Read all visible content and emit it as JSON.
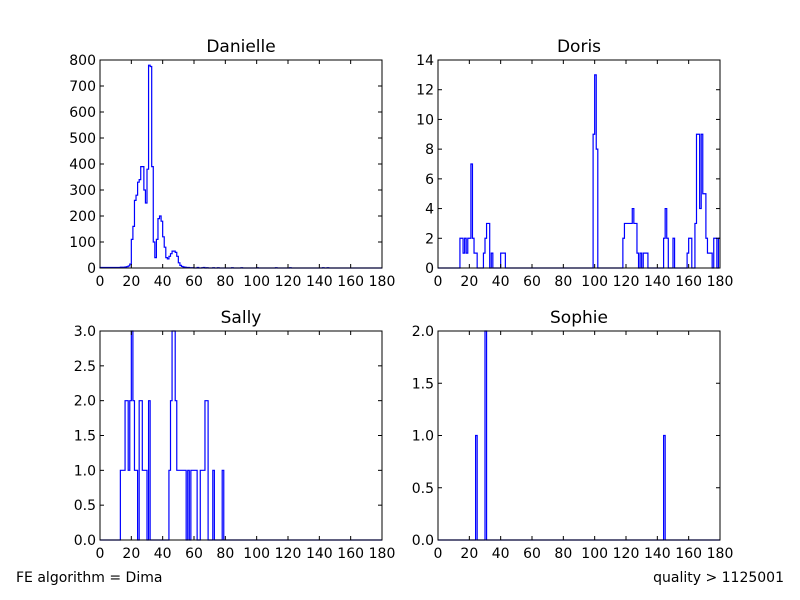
{
  "footer": {
    "left": "FE algorithm = Dima",
    "right": "quality > 1125001"
  },
  "colors": {
    "line": "#0000ff",
    "axes": "#000000",
    "background": "#ffffff"
  },
  "chart_data": [
    {
      "type": "histogram-step",
      "title": "Danielle",
      "xlim": [
        0,
        180
      ],
      "ylim": [
        0,
        800
      ],
      "xticks": [
        0,
        20,
        40,
        60,
        80,
        100,
        120,
        140,
        160,
        180
      ],
      "yticks": [
        0,
        100,
        200,
        300,
        400,
        500,
        600,
        700,
        800
      ],
      "bin_width": 1,
      "bins": [
        [
          0,
          2
        ],
        [
          1,
          2
        ],
        [
          2,
          2
        ],
        [
          3,
          2
        ],
        [
          4,
          2
        ],
        [
          5,
          2
        ],
        [
          6,
          2
        ],
        [
          7,
          2
        ],
        [
          8,
          2
        ],
        [
          9,
          2
        ],
        [
          10,
          2
        ],
        [
          11,
          2
        ],
        [
          12,
          2
        ],
        [
          13,
          3
        ],
        [
          14,
          3
        ],
        [
          15,
          3
        ],
        [
          16,
          4
        ],
        [
          17,
          5
        ],
        [
          18,
          8
        ],
        [
          19,
          15
        ],
        [
          20,
          110
        ],
        [
          21,
          160
        ],
        [
          22,
          260
        ],
        [
          23,
          280
        ],
        [
          24,
          330
        ],
        [
          25,
          340
        ],
        [
          26,
          390
        ],
        [
          27,
          390
        ],
        [
          28,
          300
        ],
        [
          29,
          250
        ],
        [
          30,
          380
        ],
        [
          31,
          780
        ],
        [
          32,
          775
        ],
        [
          33,
          390
        ],
        [
          34,
          100
        ],
        [
          35,
          40
        ],
        [
          36,
          110
        ],
        [
          37,
          190
        ],
        [
          38,
          200
        ],
        [
          39,
          180
        ],
        [
          40,
          120
        ],
        [
          41,
          80
        ],
        [
          42,
          40
        ],
        [
          43,
          35
        ],
        [
          44,
          45
        ],
        [
          45,
          55
        ],
        [
          46,
          65
        ],
        [
          47,
          65
        ],
        [
          48,
          60
        ],
        [
          49,
          45
        ],
        [
          50,
          20
        ],
        [
          51,
          10
        ],
        [
          52,
          6
        ],
        [
          53,
          4
        ],
        [
          54,
          3
        ],
        [
          55,
          2
        ],
        [
          56,
          2
        ],
        [
          57,
          1
        ],
        [
          58,
          1
        ],
        [
          59,
          1
        ],
        [
          62,
          2
        ],
        [
          65,
          1
        ],
        [
          66,
          2
        ],
        [
          68,
          1
        ],
        [
          72,
          1
        ],
        [
          75,
          1
        ],
        [
          84,
          1
        ],
        [
          90,
          1
        ],
        [
          100,
          1
        ],
        [
          112,
          1
        ],
        [
          121,
          1
        ],
        [
          142,
          1
        ],
        [
          145,
          1
        ]
      ]
    },
    {
      "type": "histogram-step",
      "title": "Doris",
      "xlim": [
        0,
        180
      ],
      "ylim": [
        0,
        14
      ],
      "xticks": [
        0,
        20,
        40,
        60,
        80,
        100,
        120,
        140,
        160,
        180
      ],
      "yticks": [
        0,
        2,
        4,
        6,
        8,
        10,
        12,
        14
      ],
      "bin_width": 1,
      "bins": [
        [
          14,
          2
        ],
        [
          15,
          2
        ],
        [
          16,
          1
        ],
        [
          17,
          2
        ],
        [
          18,
          1
        ],
        [
          19,
          2
        ],
        [
          20,
          2
        ],
        [
          21,
          7
        ],
        [
          22,
          2
        ],
        [
          23,
          1
        ],
        [
          24,
          1
        ],
        [
          29,
          1
        ],
        [
          30,
          2
        ],
        [
          31,
          3
        ],
        [
          32,
          3
        ],
        [
          34,
          1
        ],
        [
          40,
          1
        ],
        [
          41,
          1
        ],
        [
          42,
          1
        ],
        [
          99,
          9
        ],
        [
          100,
          13
        ],
        [
          101,
          8
        ],
        [
          118,
          2
        ],
        [
          119,
          3
        ],
        [
          120,
          3
        ],
        [
          121,
          3
        ],
        [
          122,
          3
        ],
        [
          123,
          3
        ],
        [
          124,
          4
        ],
        [
          125,
          3
        ],
        [
          126,
          3
        ],
        [
          127,
          1
        ],
        [
          129,
          1
        ],
        [
          131,
          1
        ],
        [
          132,
          1
        ],
        [
          133,
          1
        ],
        [
          144,
          2
        ],
        [
          145,
          4
        ],
        [
          146,
          2
        ],
        [
          150,
          2
        ],
        [
          159,
          1
        ],
        [
          160,
          2
        ],
        [
          161,
          2
        ],
        [
          164,
          3
        ],
        [
          165,
          9
        ],
        [
          166,
          9
        ],
        [
          167,
          4
        ],
        [
          168,
          9
        ],
        [
          169,
          5
        ],
        [
          170,
          5
        ],
        [
          171,
          2
        ],
        [
          172,
          1
        ],
        [
          173,
          1
        ],
        [
          174,
          1
        ],
        [
          176,
          2
        ],
        [
          177,
          2
        ],
        [
          179,
          2
        ]
      ]
    },
    {
      "type": "histogram-step",
      "title": "Sally",
      "xlim": [
        0,
        180
      ],
      "ylim": [
        0,
        3.0
      ],
      "xticks": [
        0,
        20,
        40,
        60,
        80,
        100,
        120,
        140,
        160,
        180
      ],
      "yticks": [
        "0.0",
        "0.5",
        "1.0",
        "1.5",
        "2.0",
        "2.5",
        "3.0"
      ],
      "bin_width": 1,
      "bins": [
        [
          13,
          1
        ],
        [
          14,
          1
        ],
        [
          15,
          1
        ],
        [
          16,
          2
        ],
        [
          17,
          2
        ],
        [
          18,
          1
        ],
        [
          19,
          2
        ],
        [
          20,
          3
        ],
        [
          21,
          2
        ],
        [
          22,
          1
        ],
        [
          23,
          1
        ],
        [
          25,
          2
        ],
        [
          26,
          2
        ],
        [
          27,
          1
        ],
        [
          28,
          1
        ],
        [
          29,
          1
        ],
        [
          31,
          2
        ],
        [
          44,
          1
        ],
        [
          45,
          2
        ],
        [
          46,
          3
        ],
        [
          47,
          3
        ],
        [
          48,
          2
        ],
        [
          49,
          1
        ],
        [
          50,
          1
        ],
        [
          51,
          1
        ],
        [
          52,
          1
        ],
        [
          53,
          1
        ],
        [
          54,
          1
        ],
        [
          56,
          1
        ],
        [
          58,
          1
        ],
        [
          59,
          1
        ],
        [
          60,
          1
        ],
        [
          61,
          1
        ],
        [
          64,
          1
        ],
        [
          65,
          1
        ],
        [
          66,
          1
        ],
        [
          67,
          2
        ],
        [
          68,
          2
        ],
        [
          72,
          1
        ],
        [
          78,
          1
        ]
      ]
    },
    {
      "type": "histogram-step",
      "title": "Sophie",
      "xlim": [
        0,
        180
      ],
      "ylim": [
        0,
        2.0
      ],
      "xticks": [
        0,
        20,
        40,
        60,
        80,
        100,
        120,
        140,
        160,
        180
      ],
      "yticks": [
        "0.0",
        "0.5",
        "1.0",
        "1.5",
        "2.0"
      ],
      "bin_width": 1,
      "bins": [
        [
          24,
          1
        ],
        [
          30,
          2
        ],
        [
          144,
          1
        ]
      ]
    }
  ]
}
